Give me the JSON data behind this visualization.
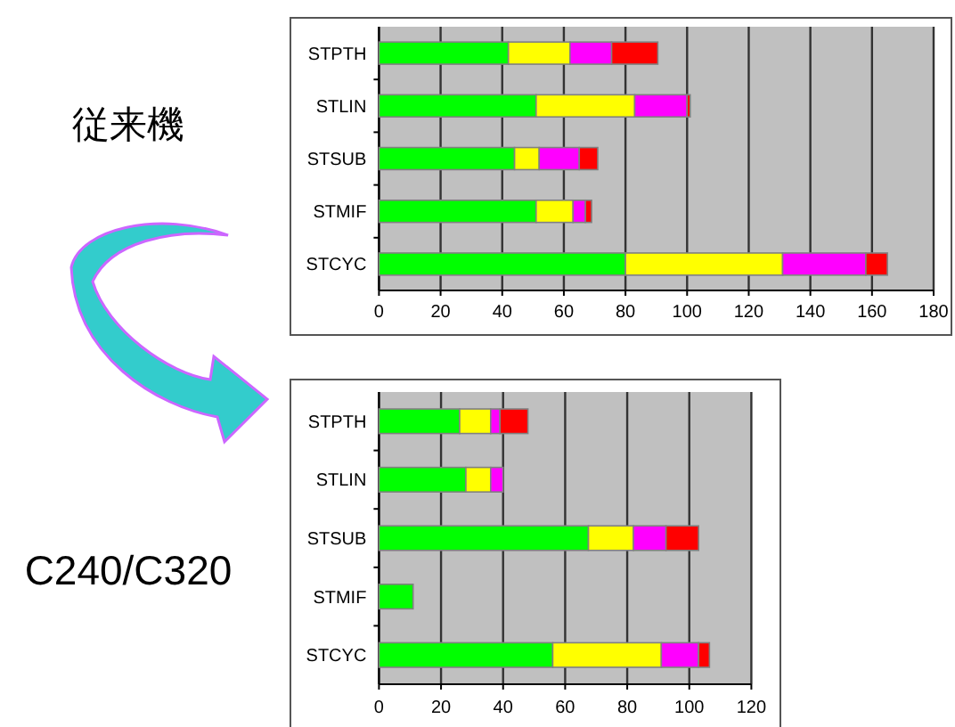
{
  "chart_data": [
    {
      "type": "bar",
      "title": "従来機",
      "orientation": "horizontal",
      "stacked": true,
      "grid": "x",
      "categories": [
        "STPTH",
        "STLIN",
        "STSUB",
        "STMIF",
        "STCYC"
      ],
      "xlim": [
        0,
        180
      ],
      "xticks": [
        0,
        20,
        40,
        60,
        80,
        100,
        120,
        140,
        160,
        180
      ],
      "series": [
        {
          "color": "#00ff00",
          "values": [
            42,
            51,
            44,
            51,
            80
          ]
        },
        {
          "color": "#ffff00",
          "values": [
            20,
            32,
            8,
            12,
            51
          ]
        },
        {
          "color": "#ff00ff",
          "values": [
            13.5,
            17,
            13,
            4,
            27
          ]
        },
        {
          "color": "#ff0000",
          "values": [
            15,
            1,
            6,
            2,
            7
          ]
        }
      ]
    },
    {
      "type": "bar",
      "title": "C240/C320",
      "orientation": "horizontal",
      "stacked": true,
      "grid": "x",
      "categories": [
        "STPTH",
        "STLIN",
        "STSUB",
        "STMIF",
        "STCYC"
      ],
      "xlim": [
        0,
        120
      ],
      "xticks": [
        0,
        20,
        40,
        60,
        80,
        100,
        120
      ],
      "series": [
        {
          "color": "#00ff00",
          "values": [
            26,
            28,
            67.5,
            11,
            56
          ]
        },
        {
          "color": "#ffff00",
          "values": [
            10,
            8,
            14.5,
            null,
            35
          ]
        },
        {
          "color": "#ff00ff",
          "values": [
            3,
            4,
            10.5,
            null,
            12
          ]
        },
        {
          "color": "#ff0000",
          "values": [
            9,
            null,
            10.5,
            null,
            3.5
          ]
        }
      ]
    }
  ]
}
